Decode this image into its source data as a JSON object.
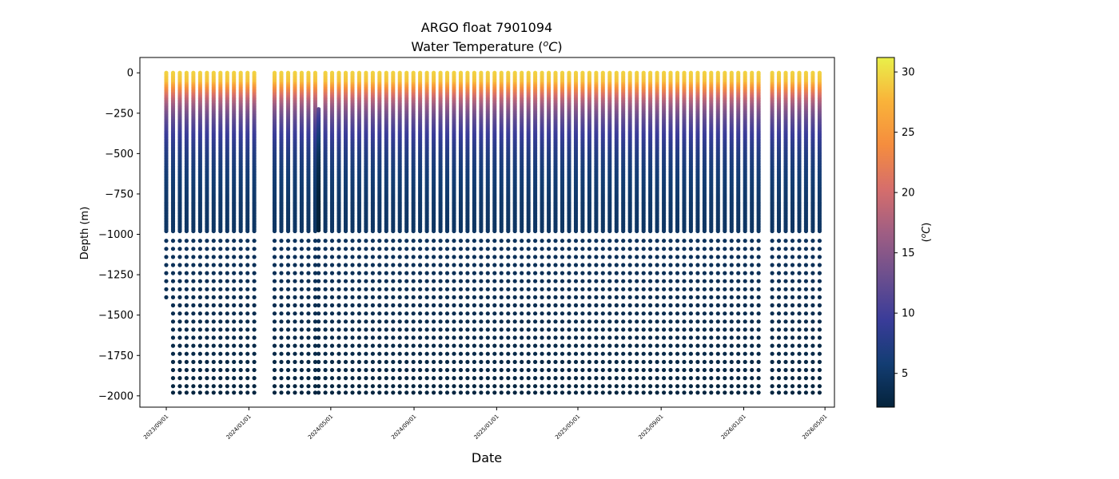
{
  "chart_data": {
    "type": "scatter",
    "title": "ARGO float 7901094",
    "subtitle": "Water Temperature (",
    "subtitle_unit_sup": "o",
    "subtitle_unit_base": "C",
    "subtitle_close": ")",
    "xlabel": "Date",
    "ylabel": "Depth (m)",
    "ylim": [
      -2070,
      95
    ],
    "xlim": [
      "2023-07-24",
      "2026-05-15"
    ],
    "x_ticks": [
      "2023/09/01",
      "2024/01/01",
      "2024/05/01",
      "2024/09/01",
      "2025/01/01",
      "2025/05/01",
      "2025/09/01",
      "2026/01/01",
      "2026/05/01"
    ],
    "y_ticks": [
      "0",
      "−250",
      "−500",
      "−750",
      "−1000",
      "−1250",
      "−1500",
      "−1750",
      "−2000"
    ],
    "y_tick_values": [
      0,
      -250,
      -500,
      -750,
      -1000,
      -1250,
      -1500,
      -1750,
      -2000
    ],
    "colorbar": {
      "label_open": "(",
      "label_sup": "o",
      "label_base": "C",
      "label_close": ")",
      "range": [
        2.2,
        31.2
      ],
      "ticks": [
        "5",
        "10",
        "15",
        "20",
        "25",
        "30"
      ],
      "tick_values": [
        5,
        10,
        15,
        20,
        25,
        30
      ],
      "colormap": "thermal",
      "stops": [
        "#04233b",
        "#133d73",
        "#3a3c99",
        "#6c4f8e",
        "#a05e83",
        "#d66e6b",
        "#f58d3e",
        "#f9b33a",
        "#e9f04a"
      ]
    },
    "profile_dates": [
      "2023-09-01",
      "2023-09-11",
      "2023-09-21",
      "2023-10-01",
      "2023-10-11",
      "2023-10-21",
      "2023-10-31",
      "2023-11-10",
      "2023-11-20",
      "2023-11-30",
      "2023-12-10",
      "2023-12-20",
      "2023-12-30",
      "2024-01-09",
      "2024-02-08",
      "2024-02-18",
      "2024-02-28",
      "2024-03-09",
      "2024-03-19",
      "2024-03-29",
      "2024-04-08",
      "2024-04-23",
      "2024-05-03",
      "2024-05-13",
      "2024-05-23",
      "2024-06-02",
      "2024-06-12",
      "2024-06-22",
      "2024-07-02",
      "2024-07-12",
      "2024-07-22",
      "2024-08-01",
      "2024-08-11",
      "2024-08-21",
      "2024-08-31",
      "2024-09-10",
      "2024-09-20",
      "2024-09-30",
      "2024-10-10",
      "2024-10-20",
      "2024-10-30",
      "2024-11-09",
      "2024-11-19",
      "2024-11-29",
      "2024-12-09",
      "2024-12-19",
      "2024-12-29",
      "2025-01-08",
      "2025-01-18",
      "2025-01-28",
      "2025-02-07",
      "2025-02-17",
      "2025-02-27",
      "2025-03-09",
      "2025-03-19",
      "2025-03-29",
      "2025-04-08",
      "2025-04-18",
      "2025-04-28",
      "2025-05-08",
      "2025-05-18",
      "2025-05-28",
      "2025-06-07",
      "2025-06-17",
      "2025-06-27",
      "2025-07-07",
      "2025-07-17",
      "2025-07-27",
      "2025-08-06",
      "2025-08-16",
      "2025-08-26",
      "2025-09-05",
      "2025-09-15",
      "2025-09-25",
      "2025-10-05",
      "2025-10-15",
      "2025-10-25",
      "2025-11-04",
      "2025-11-14",
      "2025-11-24",
      "2025-12-04",
      "2025-12-14",
      "2025-12-24",
      "2026-01-03",
      "2026-01-13",
      "2026-01-23",
      "2026-02-12",
      "2026-02-22",
      "2026-03-04",
      "2026-03-14",
      "2026-03-24",
      "2026-04-03",
      "2026-04-13",
      "2026-04-23"
    ],
    "surface_temperature_c": 29.5,
    "thermocline_depth_m": -150,
    "temperature_at_1000m_c": 4.5,
    "temperature_at_2000m_c": 2.5,
    "deep_sample_depths_m": [
      -1040,
      -1090,
      -1140,
      -1190,
      -1240,
      -1290,
      -1340,
      -1390,
      -1440,
      -1490,
      -1540,
      -1590,
      -1640,
      -1690,
      -1740,
      -1790,
      -1840,
      -1890,
      -1940,
      -1980
    ],
    "short_profile": {
      "date": "2024-04-13",
      "top_depth_m": -225
    }
  }
}
